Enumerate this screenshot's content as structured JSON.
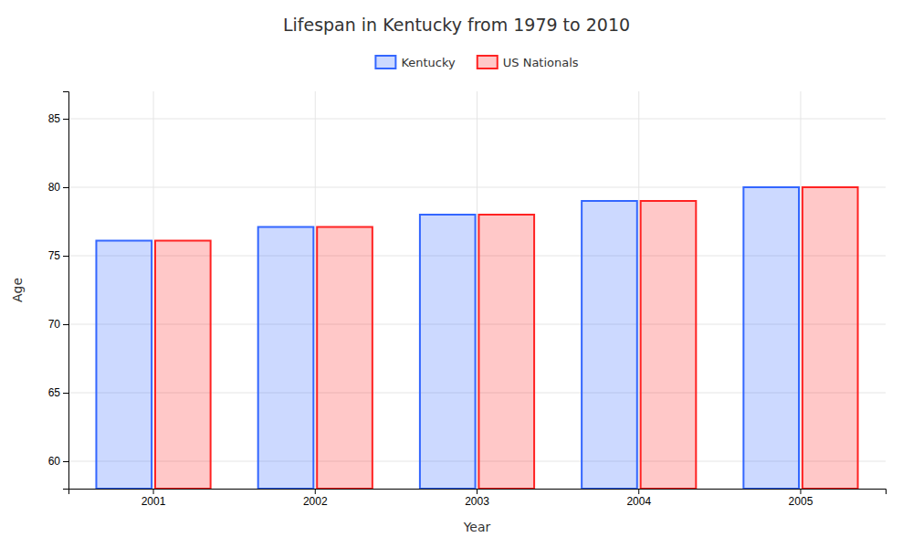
{
  "chart_data": {
    "type": "bar",
    "title": "Lifespan in Kentucky from 1979 to 2010",
    "xlabel": "Year",
    "ylabel": "Age",
    "categories": [
      "2001",
      "2002",
      "2003",
      "2004",
      "2005"
    ],
    "series": [
      {
        "name": "Kentucky",
        "color": "#3366ff",
        "values": [
          76.1,
          77.1,
          78.0,
          79.0,
          80.0
        ]
      },
      {
        "name": "US Nationals",
        "color": "#ff2222",
        "values": [
          76.1,
          77.1,
          78.0,
          79.0,
          80.0
        ]
      }
    ],
    "ylim": [
      58,
      87
    ],
    "yticks": [
      60,
      65,
      70,
      75,
      80,
      85
    ],
    "grid": true,
    "legend": "top"
  }
}
